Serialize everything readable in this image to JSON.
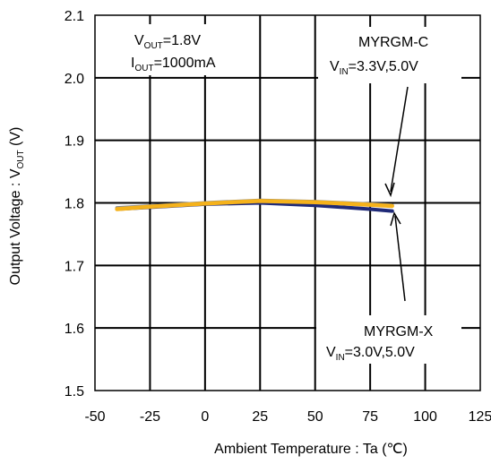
{
  "chart_data": {
    "type": "line",
    "title": "",
    "xlabel": "Ambient Temperature : Ta (℃)",
    "ylabel": {
      "main": "Output Voltage : V",
      "sub": "OUT",
      "unit": " (V)"
    },
    "xlim": [
      -50,
      125
    ],
    "ylim": [
      1.5,
      2.1
    ],
    "x_ticks": [
      -50,
      -25,
      0,
      25,
      50,
      75,
      100,
      125
    ],
    "x_tick_labels": [
      "-50",
      "-25",
      "0",
      "25",
      "50",
      "75",
      "100",
      "125"
    ],
    "y_ticks": [
      1.5,
      1.6,
      1.7,
      1.8,
      1.9,
      2.0,
      2.1
    ],
    "y_tick_labels": [
      "1.5",
      "1.6",
      "1.7",
      "1.8",
      "1.9",
      "2.0",
      "2.1"
    ],
    "grid": true,
    "series": [
      {
        "color": "#1f2a78",
        "x": [
          -40,
          -25,
          0,
          25,
          50,
          75,
          85
        ],
        "y": [
          1.79,
          1.793,
          1.798,
          1.8,
          1.796,
          1.79,
          1.787
        ]
      },
      {
        "color": "#8c8c8c",
        "x": [
          -40,
          -25,
          0,
          25,
          50,
          75,
          85
        ],
        "y": [
          1.792,
          1.795,
          1.8,
          1.804,
          1.802,
          1.798,
          1.796
        ]
      },
      {
        "color": "#f5b21b",
        "x": [
          -40,
          -25,
          0,
          25,
          50,
          75,
          85
        ],
        "y": [
          1.79,
          1.794,
          1.799,
          1.803,
          1.801,
          1.797,
          1.795
        ]
      }
    ],
    "annotations": {
      "conditions": {
        "line1_main": "V",
        "line1_sub": "OUT",
        "line1_rest": "=1.8V",
        "line2_main": "I",
        "line2_sub": "OUT",
        "line2_rest": "=1000mA"
      },
      "c_label": {
        "name": "MYRGM-C",
        "vin_main": "V",
        "vin_sub": "IN",
        "vin_rest": "=3.3V,5.0V"
      },
      "x_label": {
        "name": "MYRGM-X",
        "vin_main": "V",
        "vin_sub": "IN",
        "vin_rest": "=3.0V,5.0V"
      }
    }
  }
}
